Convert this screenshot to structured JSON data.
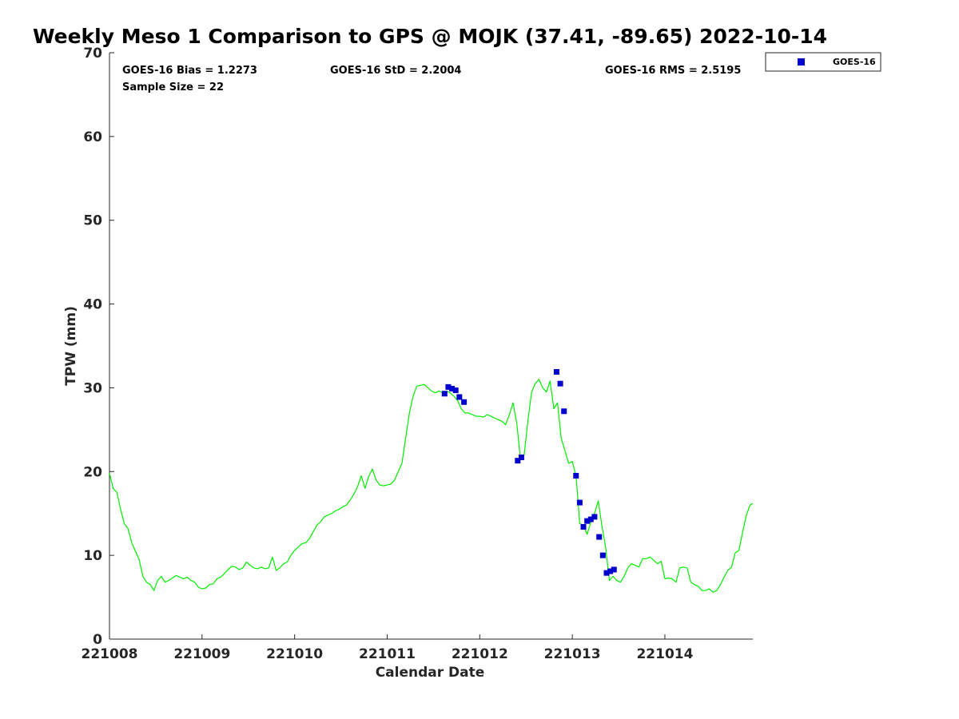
{
  "chart_data": {
    "type": "scatter",
    "title": "Weekly Meso 1 Comparison to GPS @ MOJK (37.41, -89.65) 2022-10-14",
    "xlabel": "Calendar Date",
    "ylabel": "TPW (mm)",
    "xlim": [
      221008,
      221014.95
    ],
    "ylim": [
      0,
      70
    ],
    "x_ticks": [
      221008,
      221009,
      221010,
      221011,
      221012,
      221013,
      221014
    ],
    "y_ticks": [
      0,
      10,
      20,
      30,
      40,
      50,
      60,
      70
    ],
    "grid": false,
    "legend_position": "top-right, outside plot",
    "stats": {
      "bias": "GOES-16 Bias = 1.2273",
      "std": "GOES-16 StD = 2.2004",
      "rms": "GOES-16 RMS = 2.5195",
      "sample": "Sample Size = 22"
    },
    "colors": {
      "goes16": "#0000cc",
      "gps": "#00ee00"
    },
    "series": [
      {
        "name": "GOES-16",
        "kind": "scatter",
        "x": [
          221011.62,
          221011.66,
          221011.7,
          221011.74,
          221011.78,
          221011.83,
          221012.41,
          221012.45,
          221012.83,
          221012.87,
          221012.91,
          221013.04,
          221013.08,
          221013.12,
          221013.16,
          221013.2,
          221013.24,
          221013.29,
          221013.33,
          221013.37,
          221013.41,
          221013.45
        ],
        "y": [
          29.3,
          30.1,
          29.9,
          29.7,
          28.9,
          28.3,
          21.3,
          21.7,
          31.9,
          30.5,
          27.2,
          19.5,
          16.3,
          13.4,
          14.1,
          14.3,
          14.6,
          12.2,
          10.0,
          7.9,
          8.1,
          8.3
        ]
      },
      {
        "kind": "line",
        "x": [
          221008.0,
          221008.04,
          221008.08,
          221008.12,
          221008.16,
          221008.2,
          221008.24,
          221008.28,
          221008.32,
          221008.36,
          221008.4,
          221008.44,
          221008.48,
          221008.52,
          221008.56,
          221008.6,
          221008.64,
          221008.68,
          221008.72,
          221008.76,
          221008.8,
          221008.84,
          221008.88,
          221008.92,
          221008.96,
          221009.0,
          221009.04,
          221009.08,
          221009.12,
          221009.16,
          221009.2,
          221009.24,
          221009.28,
          221009.32,
          221009.36,
          221009.4,
          221009.44,
          221009.48,
          221009.52,
          221009.56,
          221009.6,
          221009.64,
          221009.68,
          221009.72,
          221009.76,
          221009.8,
          221009.84,
          221009.88,
          221009.92,
          221009.96,
          221010.0,
          221010.04,
          221010.08,
          221010.12,
          221010.16,
          221010.2,
          221010.24,
          221010.28,
          221010.32,
          221010.36,
          221010.4,
          221010.44,
          221010.48,
          221010.52,
          221010.56,
          221010.6,
          221010.64,
          221010.68,
          221010.72,
          221010.76,
          221010.8,
          221010.84,
          221010.88,
          221010.92,
          221010.96,
          221011.0,
          221011.04,
          221011.08,
          221011.12,
          221011.16,
          221011.2,
          221011.24,
          221011.28,
          221011.32,
          221011.36,
          221011.4,
          221011.44,
          221011.48,
          221011.52,
          221011.56,
          221011.6,
          221011.64,
          221011.68,
          221011.72,
          221011.76,
          221011.8,
          221011.84,
          221011.88,
          221011.92,
          221011.96,
          221012.0,
          221012.04,
          221012.08,
          221012.12,
          221012.16,
          221012.2,
          221012.24,
          221012.28,
          221012.32,
          221012.36,
          221012.4,
          221012.44,
          221012.48,
          221012.52,
          221012.56,
          221012.6,
          221012.64,
          221012.68,
          221012.72,
          221012.76,
          221012.8,
          221012.84,
          221012.88,
          221012.92,
          221012.96,
          221013.0,
          221013.04,
          221013.08,
          221013.12,
          221013.16,
          221013.2,
          221013.24,
          221013.28,
          221013.32,
          221013.36,
          221013.4,
          221013.44,
          221013.48,
          221013.52,
          221013.56,
          221013.6,
          221013.64,
          221013.68,
          221013.72,
          221013.76,
          221013.8,
          221013.84,
          221013.88,
          221013.92,
          221013.96,
          221014.0,
          221014.04,
          221014.08,
          221014.12,
          221014.16,
          221014.2,
          221014.24,
          221014.28,
          221014.32,
          221014.36,
          221014.4,
          221014.44,
          221014.48,
          221014.52,
          221014.56,
          221014.6,
          221014.64,
          221014.68,
          221014.72,
          221014.76,
          221014.8,
          221014.84,
          221014.88,
          221014.92,
          221014.95
        ],
        "y": [
          19.8,
          18.0,
          17.5,
          15.5,
          13.8,
          13.2,
          11.5,
          10.5,
          9.5,
          7.5,
          6.8,
          6.5,
          5.8,
          7.0,
          7.5,
          6.8,
          7.0,
          7.3,
          7.6,
          7.4,
          7.2,
          7.4,
          7.0,
          6.8,
          6.2,
          6.0,
          6.1,
          6.5,
          6.6,
          7.2,
          7.4,
          7.8,
          8.3,
          8.7,
          8.6,
          8.3,
          8.5,
          9.2,
          8.8,
          8.5,
          8.4,
          8.6,
          8.4,
          8.5,
          9.8,
          8.2,
          8.5,
          9.0,
          9.2,
          10.0,
          10.6,
          11.0,
          11.4,
          11.5,
          12.0,
          12.8,
          13.6,
          14.0,
          14.6,
          14.8,
          15.0,
          15.3,
          15.5,
          15.8,
          16.0,
          16.6,
          17.3,
          18.2,
          19.5,
          18.0,
          19.4,
          20.3,
          19.0,
          18.4,
          18.3,
          18.4,
          18.5,
          19.0,
          20.0,
          21.0,
          24.0,
          27.0,
          29.0,
          30.2,
          30.3,
          30.4,
          30.0,
          29.6,
          29.4,
          29.6,
          29.4,
          29.6,
          29.4,
          29.0,
          28.5,
          27.5,
          27.0,
          27.0,
          26.8,
          26.6,
          26.6,
          26.5,
          26.8,
          26.6,
          26.4,
          26.2,
          26.0,
          25.6,
          26.8,
          28.2,
          25.8,
          21.5,
          22.0,
          26.0,
          29.5,
          30.5,
          31.0,
          30.0,
          29.5,
          30.8,
          27.5,
          28.2,
          24.0,
          22.5,
          21.0,
          21.2,
          19.5,
          13.8,
          13.6,
          12.5,
          14.0,
          15.0,
          16.5,
          13.5,
          11.0,
          7.0,
          7.5,
          7.0,
          6.8,
          7.5,
          8.5,
          9.0,
          8.8,
          8.6,
          9.6,
          9.6,
          9.8,
          9.4,
          9.0,
          9.3,
          7.2,
          7.3,
          7.2,
          6.8,
          8.5,
          8.6,
          8.5,
          6.8,
          6.5,
          6.3,
          5.8,
          5.8,
          6.0,
          5.6,
          5.8,
          6.5,
          7.4,
          8.2,
          8.6,
          10.3,
          10.6,
          12.8,
          14.8,
          16.0,
          16.2
        ]
      }
    ]
  }
}
